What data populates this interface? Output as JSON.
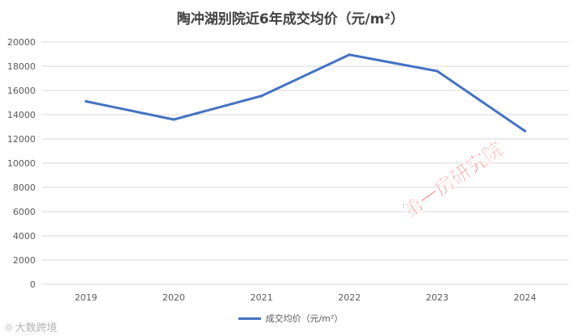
{
  "chart_data": {
    "type": "line",
    "title": "陶冲湖别院近6年成交均价（元/m²）",
    "categories": [
      "2019",
      "2020",
      "2021",
      "2022",
      "2023",
      "2024"
    ],
    "series": [
      {
        "name": "成交均价（元/m²）",
        "values": [
          15100,
          13600,
          15550,
          18950,
          17600,
          12650
        ],
        "color": "#4472c4"
      }
    ],
    "ylim": [
      0,
      20000
    ],
    "yticks": [
      "0",
      "2000",
      "4000",
      "6000",
      "8000",
      "10000",
      "12000",
      "14000",
      "16000",
      "18000",
      "20000"
    ],
    "grid": true,
    "legend": "bottom"
  },
  "watermark": {
    "brand_text": "第一房研究院",
    "corner_text": "大数跨境",
    "corner_icon": "eye-icon"
  },
  "colors": {
    "grid": "#d9d9d9",
    "axis_text": "#595959",
    "watermark_red": "#ff1a1a"
  }
}
